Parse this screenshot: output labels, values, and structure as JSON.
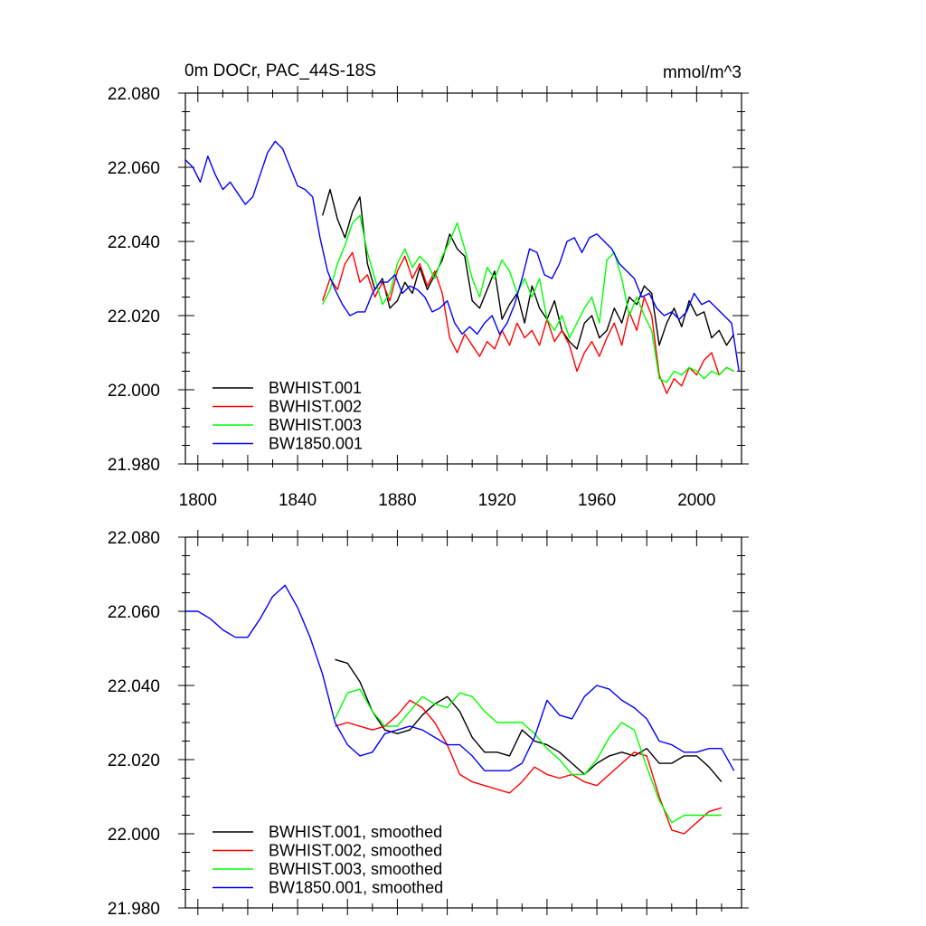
{
  "colors": {
    "BWHIST.001": "#000000",
    "BWHIST.002": "#ff0000",
    "BWHIST.003": "#00ff00",
    "BW1850.001": "#0000ff"
  },
  "chart_data": [
    {
      "type": "line",
      "title": "0m DOCr, PAC_44S-18S",
      "units": "mmol/m^3",
      "xlim": [
        1795,
        2018
      ],
      "ylim": [
        21.98,
        22.08
      ],
      "xticks": [
        "1800",
        "1840",
        "1880",
        "1920",
        "1960",
        "2000"
      ],
      "yticks": [
        "21.980",
        "22.000",
        "22.020",
        "22.040",
        "22.060",
        "22.080"
      ],
      "legend_position": "bottom-left",
      "series": [
        {
          "name": "BWHIST.001",
          "color_key": "BWHIST.001",
          "x": [
            1850,
            1853,
            1856,
            1859,
            1862,
            1865,
            1868,
            1871,
            1874,
            1877,
            1880,
            1883,
            1886,
            1889,
            1892,
            1895,
            1898,
            1901,
            1904,
            1907,
            1910,
            1913,
            1916,
            1919,
            1922,
            1925,
            1928,
            1931,
            1934,
            1937,
            1940,
            1943,
            1946,
            1949,
            1952,
            1955,
            1958,
            1961,
            1964,
            1967,
            1970,
            1973,
            1976,
            1979,
            1982,
            1985,
            1988,
            1991,
            1994,
            1997,
            2000,
            2003,
            2006,
            2009,
            2012,
            2015
          ],
          "y": [
            22.047,
            22.054,
            22.046,
            22.041,
            22.048,
            22.052,
            22.034,
            22.027,
            22.03,
            22.022,
            22.024,
            22.029,
            22.026,
            22.033,
            22.027,
            22.031,
            22.035,
            22.042,
            22.038,
            22.036,
            22.024,
            22.022,
            22.027,
            22.032,
            22.019,
            22.023,
            22.026,
            22.018,
            22.028,
            22.022,
            22.019,
            22.024,
            22.016,
            22.013,
            22.011,
            22.018,
            22.02,
            22.014,
            22.016,
            22.022,
            22.018,
            22.025,
            22.023,
            22.028,
            22.026,
            22.012,
            22.018,
            22.022,
            22.017,
            22.024,
            22.02,
            22.021,
            22.014,
            22.016,
            22.012,
            22.015
          ]
        },
        {
          "name": "BWHIST.002",
          "color_key": "BWHIST.002",
          "x": [
            1850,
            1853,
            1856,
            1859,
            1862,
            1865,
            1868,
            1871,
            1874,
            1877,
            1880,
            1883,
            1886,
            1889,
            1892,
            1895,
            1898,
            1901,
            1904,
            1907,
            1910,
            1913,
            1916,
            1919,
            1922,
            1925,
            1928,
            1931,
            1934,
            1937,
            1940,
            1943,
            1946,
            1949,
            1952,
            1955,
            1958,
            1961,
            1964,
            1967,
            1970,
            1973,
            1976,
            1979,
            1982,
            1985,
            1988,
            1991,
            1994,
            1997,
            2000,
            2003,
            2006,
            2009,
            2012,
            2015
          ],
          "y": [
            22.024,
            22.03,
            22.027,
            22.034,
            22.037,
            22.029,
            22.031,
            22.025,
            22.029,
            22.024,
            22.032,
            22.036,
            22.03,
            22.034,
            22.028,
            22.032,
            22.026,
            22.014,
            22.01,
            22.015,
            22.012,
            22.009,
            22.013,
            22.011,
            22.016,
            22.012,
            22.018,
            22.014,
            22.016,
            22.012,
            22.019,
            22.013,
            22.016,
            22.012,
            22.005,
            22.01,
            22.013,
            22.009,
            22.014,
            22.018,
            22.012,
            22.021,
            22.016,
            22.025,
            22.02,
            22.004,
            21.999,
            22.003,
            22.001,
            22.006,
            22.004,
            22.008,
            22.01,
            22.004,
            22.006,
            22.005
          ]
        },
        {
          "name": "BWHIST.003",
          "color_key": "BWHIST.003",
          "x": [
            1850,
            1853,
            1856,
            1859,
            1862,
            1865,
            1868,
            1871,
            1874,
            1877,
            1880,
            1883,
            1886,
            1889,
            1892,
            1895,
            1898,
            1901,
            1904,
            1907,
            1910,
            1913,
            1916,
            1919,
            1922,
            1925,
            1928,
            1931,
            1934,
            1937,
            1940,
            1943,
            1946,
            1949,
            1952,
            1955,
            1958,
            1961,
            1964,
            1967,
            1970,
            1973,
            1976,
            1979,
            1982,
            1985,
            1988,
            1991,
            1994,
            1997,
            2000,
            2003,
            2006,
            2009,
            2012,
            2015
          ],
          "y": [
            22.023,
            22.027,
            22.034,
            22.039,
            22.045,
            22.047,
            22.037,
            22.03,
            22.023,
            22.026,
            22.034,
            22.038,
            22.033,
            22.036,
            22.034,
            22.03,
            22.036,
            22.04,
            22.045,
            22.038,
            22.03,
            22.025,
            22.033,
            22.03,
            22.035,
            22.032,
            22.026,
            22.03,
            22.025,
            22.03,
            22.019,
            22.016,
            22.02,
            22.014,
            22.018,
            22.022,
            22.025,
            22.018,
            22.035,
            22.037,
            22.03,
            22.02,
            22.025,
            22.02,
            22.016,
            22.003,
            22.002,
            22.005,
            22.004,
            22.006,
            22.005,
            22.003,
            22.005,
            22.004,
            22.006,
            22.005
          ]
        },
        {
          "name": "BW1850.001",
          "color_key": "BW1850.001",
          "x": [
            1795,
            1798,
            1801,
            1804,
            1807,
            1810,
            1813,
            1816,
            1819,
            1822,
            1825,
            1828,
            1831,
            1834,
            1837,
            1840,
            1843,
            1846,
            1849,
            1852,
            1855,
            1858,
            1861,
            1864,
            1867,
            1870,
            1873,
            1876,
            1879,
            1882,
            1885,
            1888,
            1891,
            1894,
            1897,
            1900,
            1903,
            1906,
            1909,
            1912,
            1915,
            1918,
            1921,
            1924,
            1927,
            1930,
            1933,
            1936,
            1939,
            1942,
            1945,
            1948,
            1951,
            1954,
            1957,
            1960,
            1963,
            1966,
            1969,
            1972,
            1975,
            1978,
            1981,
            1984,
            1987,
            1990,
            1993,
            1996,
            1999,
            2002,
            2005,
            2008,
            2011,
            2014,
            2017
          ],
          "y": [
            22.062,
            22.06,
            22.056,
            22.063,
            22.058,
            22.054,
            22.056,
            22.053,
            22.05,
            22.052,
            22.058,
            22.064,
            22.067,
            22.065,
            22.06,
            22.055,
            22.054,
            22.052,
            22.041,
            22.032,
            22.027,
            22.023,
            22.02,
            22.021,
            22.021,
            22.026,
            22.029,
            22.029,
            22.031,
            22.026,
            22.028,
            22.027,
            22.025,
            22.021,
            22.022,
            22.024,
            22.018,
            22.015,
            22.017,
            22.015,
            22.018,
            22.02,
            22.015,
            22.018,
            22.023,
            22.03,
            22.038,
            22.037,
            22.031,
            22.03,
            22.034,
            22.04,
            22.041,
            22.037,
            22.041,
            22.042,
            22.04,
            22.038,
            22.034,
            22.032,
            22.03,
            22.025,
            22.026,
            22.022,
            22.02,
            22.021,
            22.019,
            22.021,
            22.026,
            22.023,
            22.024,
            22.022,
            22.02,
            22.018,
            22.005
          ]
        }
      ]
    },
    {
      "type": "line",
      "xlim": [
        1795,
        2018
      ],
      "ylim": [
        21.98,
        22.08
      ],
      "yticks": [
        "21.980",
        "22.000",
        "22.020",
        "22.040",
        "22.060",
        "22.080"
      ],
      "legend_position": "bottom-left",
      "series": [
        {
          "name": "BWHIST.001, smoothed",
          "color_key": "BWHIST.001",
          "x": [
            1855,
            1860,
            1865,
            1870,
            1875,
            1880,
            1885,
            1890,
            1895,
            1900,
            1905,
            1910,
            1915,
            1920,
            1925,
            1930,
            1935,
            1940,
            1945,
            1950,
            1955,
            1960,
            1965,
            1970,
            1975,
            1980,
            1985,
            1990,
            1995,
            2000,
            2005,
            2010
          ],
          "y": [
            22.047,
            22.046,
            22.041,
            22.033,
            22.028,
            22.027,
            22.028,
            22.032,
            22.035,
            22.037,
            22.033,
            22.026,
            22.022,
            22.022,
            22.021,
            22.028,
            22.025,
            22.024,
            22.022,
            22.019,
            22.016,
            22.019,
            22.021,
            22.022,
            22.021,
            22.023,
            22.019,
            22.019,
            22.021,
            22.021,
            22.018,
            22.014
          ]
        },
        {
          "name": "BWHIST.002, smoothed",
          "color_key": "BWHIST.002",
          "x": [
            1855,
            1860,
            1865,
            1870,
            1875,
            1880,
            1885,
            1890,
            1895,
            1900,
            1905,
            1910,
            1915,
            1920,
            1925,
            1930,
            1935,
            1940,
            1945,
            1950,
            1955,
            1960,
            1965,
            1970,
            1975,
            1980,
            1985,
            1990,
            1995,
            2000,
            2005,
            2010
          ],
          "y": [
            22.029,
            22.03,
            22.029,
            22.028,
            22.029,
            22.032,
            22.036,
            22.034,
            22.03,
            22.024,
            22.016,
            22.014,
            22.013,
            22.012,
            22.011,
            22.014,
            22.018,
            22.016,
            22.015,
            22.016,
            22.014,
            22.013,
            22.016,
            22.019,
            22.022,
            22.021,
            22.01,
            22.001,
            22.0,
            22.003,
            22.006,
            22.007
          ]
        },
        {
          "name": "BWHIST.003, smoothed",
          "color_key": "BWHIST.003",
          "x": [
            1855,
            1860,
            1865,
            1870,
            1875,
            1880,
            1885,
            1890,
            1895,
            1900,
            1905,
            1910,
            1915,
            1920,
            1925,
            1930,
            1935,
            1940,
            1945,
            1950,
            1955,
            1960,
            1965,
            1970,
            1975,
            1980,
            1985,
            1990,
            1995,
            2000,
            2005,
            2010
          ],
          "y": [
            22.031,
            22.038,
            22.039,
            22.033,
            22.029,
            22.029,
            22.033,
            22.037,
            22.035,
            22.034,
            22.038,
            22.037,
            22.033,
            22.03,
            22.03,
            22.03,
            22.027,
            22.023,
            22.02,
            22.016,
            22.016,
            22.02,
            22.026,
            22.03,
            22.028,
            22.018,
            22.009,
            22.003,
            22.005,
            22.005,
            22.005,
            22.005
          ]
        },
        {
          "name": "BW1850.001, smoothed",
          "color_key": "BW1850.001",
          "x": [
            1795,
            1800,
            1805,
            1810,
            1815,
            1820,
            1825,
            1830,
            1835,
            1840,
            1845,
            1850,
            1855,
            1860,
            1865,
            1870,
            1875,
            1880,
            1885,
            1890,
            1895,
            1900,
            1905,
            1910,
            1915,
            1920,
            1925,
            1930,
            1935,
            1940,
            1945,
            1950,
            1955,
            1960,
            1965,
            1970,
            1975,
            1980,
            1985,
            1990,
            1995,
            2000,
            2005,
            2010,
            2015
          ],
          "y": [
            22.06,
            22.06,
            22.058,
            22.055,
            22.053,
            22.053,
            22.058,
            22.064,
            22.067,
            22.061,
            22.053,
            22.043,
            22.03,
            22.024,
            22.021,
            22.022,
            22.027,
            22.028,
            22.029,
            22.028,
            22.026,
            22.024,
            22.024,
            22.021,
            22.017,
            22.017,
            22.017,
            22.019,
            22.026,
            22.036,
            22.032,
            22.031,
            22.037,
            22.04,
            22.039,
            22.036,
            22.034,
            22.031,
            22.025,
            22.024,
            22.022,
            22.022,
            22.023,
            22.023,
            22.017
          ]
        }
      ]
    }
  ]
}
